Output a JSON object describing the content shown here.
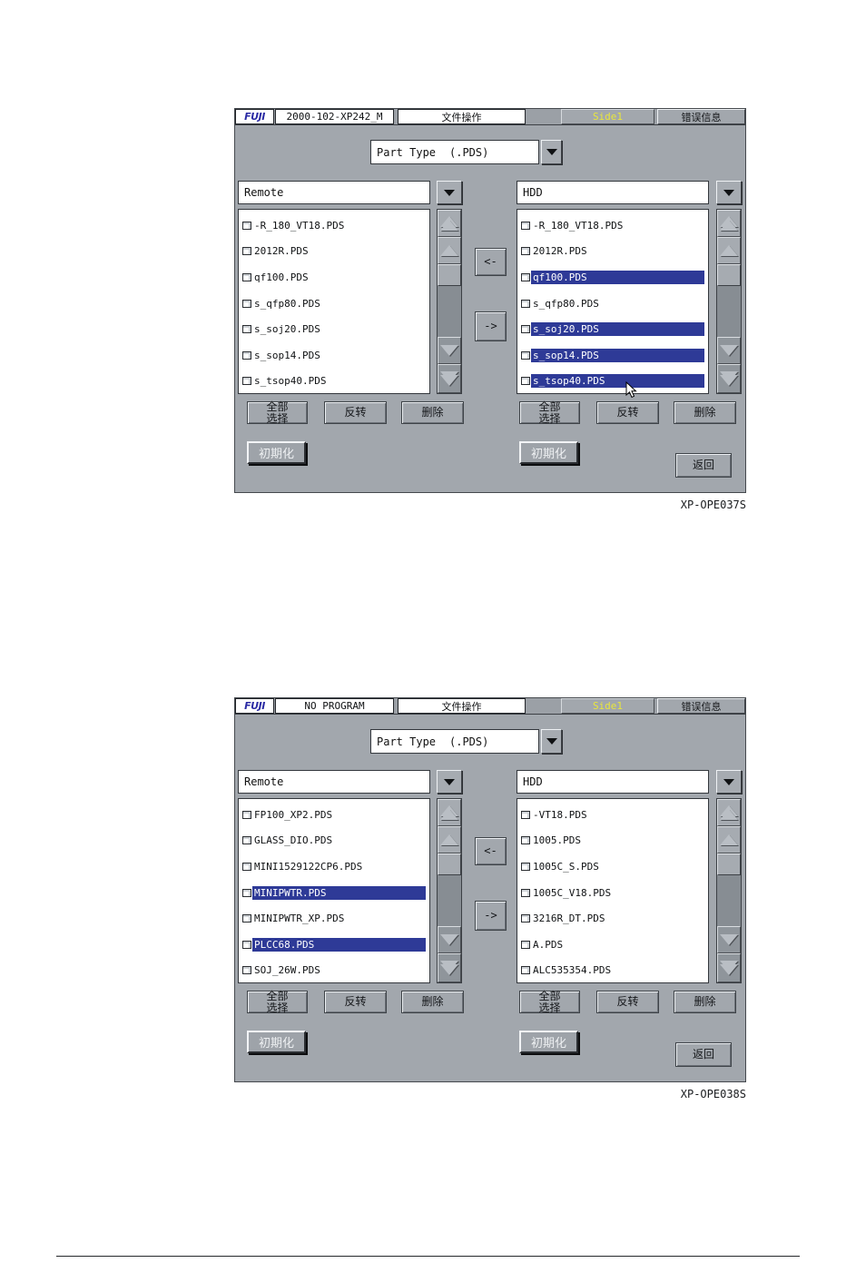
{
  "colors": {
    "body_gray": "#a2a7ad",
    "track_gray": "#878d93",
    "highlight_blue": "#2e3a97",
    "side_yellow": "#e8e63c",
    "logo_blue": "#2b2ba4"
  },
  "icons": {
    "dropdown_arrow": "triangle-down",
    "file_icon": "small-page",
    "scroll_up": "triangle-up",
    "scroll_down": "triangle-down",
    "scroll_page_up": "double-triangle-up",
    "scroll_page_down": "double-triangle-down"
  },
  "screens": [
    {
      "header": {
        "logo": "FUJI",
        "program": "2000-102-XP242_M",
        "title": "文件操作",
        "side_label": "Side1",
        "error_label": "错误信息"
      },
      "part_type": {
        "label": "Part Type",
        "ext": "(.PDS)"
      },
      "left_panel": {
        "source": "Remote",
        "items": [
          {
            "name": "-R_180_VT18.PDS",
            "selected": false
          },
          {
            "name": "2012R.PDS",
            "selected": false
          },
          {
            "name": "qf100.PDS",
            "selected": false
          },
          {
            "name": "s_qfp80.PDS",
            "selected": false
          },
          {
            "name": "s_soj20.PDS",
            "selected": false
          },
          {
            "name": "s_sop14.PDS",
            "selected": false
          },
          {
            "name": "s_tsop40.PDS",
            "selected": false
          }
        ]
      },
      "right_panel": {
        "source": "HDD",
        "items": [
          {
            "name": "-R_180_VT18.PDS",
            "selected": false
          },
          {
            "name": "2012R.PDS",
            "selected": false
          },
          {
            "name": "qf100.PDS",
            "selected": true
          },
          {
            "name": "s_qfp80.PDS",
            "selected": false
          },
          {
            "name": "s_soj20.PDS",
            "selected": true
          },
          {
            "name": "s_sop14.PDS",
            "selected": true
          },
          {
            "name": "s_tsop40.PDS",
            "selected": true
          }
        ]
      },
      "transfer": {
        "to_left": "<-",
        "to_right": "->"
      },
      "actions": {
        "select_all": "全部\n选择",
        "invert": "反转",
        "delete": "删除",
        "initialize": "初期化",
        "back": "返回"
      },
      "caption": "XP-OPE037S"
    },
    {
      "header": {
        "logo": "FUJI",
        "program": "NO PROGRAM",
        "title": "文件操作",
        "side_label": "Side1",
        "error_label": "错误信息"
      },
      "part_type": {
        "label": "Part Type",
        "ext": "(.PDS)"
      },
      "left_panel": {
        "source": "Remote",
        "items": [
          {
            "name": "FP100_XP2.PDS",
            "selected": false
          },
          {
            "name": "GLASS_DIO.PDS",
            "selected": false
          },
          {
            "name": "MINI1529122CP6.PDS",
            "selected": false
          },
          {
            "name": "MINIPWTR.PDS",
            "selected": true
          },
          {
            "name": "MINIPWTR_XP.PDS",
            "selected": false
          },
          {
            "name": "PLCC68.PDS",
            "selected": true
          },
          {
            "name": "SOJ_26W.PDS",
            "selected": false
          }
        ]
      },
      "right_panel": {
        "source": "HDD",
        "items": [
          {
            "name": "-VT18.PDS",
            "selected": false
          },
          {
            "name": "1005.PDS",
            "selected": false
          },
          {
            "name": "1005C_S.PDS",
            "selected": false
          },
          {
            "name": "1005C_V18.PDS",
            "selected": false
          },
          {
            "name": "3216R_DT.PDS",
            "selected": false
          },
          {
            "name": "A.PDS",
            "selected": false
          },
          {
            "name": "ALC535354.PDS",
            "selected": false
          }
        ]
      },
      "transfer": {
        "to_left": "<-",
        "to_right": "->"
      },
      "actions": {
        "select_all": "全部\n选择",
        "invert": "反转",
        "delete": "删除",
        "initialize": "初期化",
        "back": "返回"
      },
      "caption": "XP-OPE038S"
    }
  ]
}
